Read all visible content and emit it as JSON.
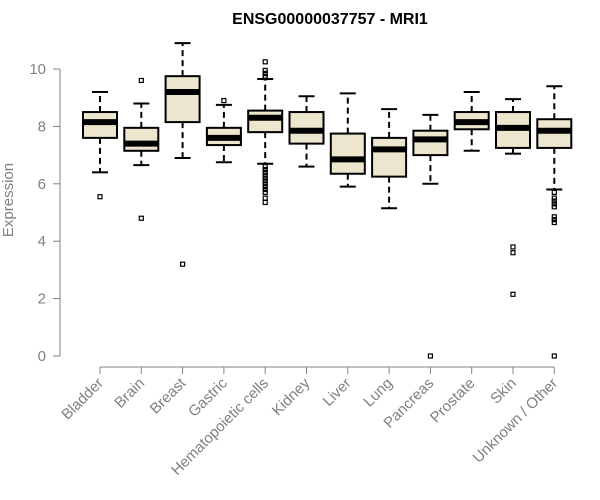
{
  "chart_data": {
    "type": "boxplot",
    "title": "ENSG00000037757 - MRI1",
    "xlabel": "",
    "ylabel": "Expression",
    "ylim": [
      0,
      10
    ],
    "yticks": [
      "0",
      "2",
      "4",
      "6",
      "8",
      "10"
    ],
    "grid": false,
    "colors": {
      "box_fill": "#ede6cf",
      "stroke": "#000000",
      "axis": "#808080",
      "tick_label": "#808080"
    },
    "categories": [
      "Bladder",
      "Brain",
      "Breast",
      "Gastric",
      "Hematopoietic cells",
      "Kidney",
      "Liver",
      "Lung",
      "Pancreas",
      "Prostate",
      "Skin",
      "Unknown / Other"
    ],
    "boxes": [
      {
        "category": "Bladder",
        "whisker_low": 6.4,
        "q1": 7.6,
        "median": 8.15,
        "q3": 8.5,
        "whisker_high": 9.2,
        "outliers": [
          5.55
        ]
      },
      {
        "category": "Brain",
        "whisker_low": 6.65,
        "q1": 7.15,
        "median": 7.4,
        "q3": 7.95,
        "whisker_high": 8.8,
        "outliers": [
          9.6,
          4.8
        ]
      },
      {
        "category": "Breast",
        "whisker_low": 6.9,
        "q1": 8.15,
        "median": 9.2,
        "q3": 9.75,
        "whisker_high": 10.9,
        "outliers": [
          3.2
        ]
      },
      {
        "category": "Gastric",
        "whisker_low": 6.75,
        "q1": 7.35,
        "median": 7.6,
        "q3": 7.95,
        "whisker_high": 8.75,
        "outliers": [
          8.9
        ]
      },
      {
        "category": "Hematopoietic cells",
        "whisker_low": 6.7,
        "q1": 7.8,
        "median": 8.3,
        "q3": 8.55,
        "whisker_high": 9.65,
        "outliers": [
          10.25,
          9.95,
          9.85,
          9.75,
          9.7,
          6.6,
          6.5,
          6.4,
          6.3,
          6.2,
          6.1,
          6.0,
          5.9,
          5.8,
          5.7,
          5.5,
          5.35
        ]
      },
      {
        "category": "Kidney",
        "whisker_low": 6.6,
        "q1": 7.4,
        "median": 7.85,
        "q3": 8.5,
        "whisker_high": 9.05,
        "outliers": []
      },
      {
        "category": "Liver",
        "whisker_low": 5.9,
        "q1": 6.35,
        "median": 6.85,
        "q3": 7.75,
        "whisker_high": 9.15,
        "outliers": []
      },
      {
        "category": "Lung",
        "whisker_low": 5.15,
        "q1": 6.25,
        "median": 7.2,
        "q3": 7.6,
        "whisker_high": 8.6,
        "outliers": []
      },
      {
        "category": "Pancreas",
        "whisker_low": 6.0,
        "q1": 7.0,
        "median": 7.55,
        "q3": 7.85,
        "whisker_high": 8.4,
        "outliers": [
          0.0
        ]
      },
      {
        "category": "Prostate",
        "whisker_low": 7.15,
        "q1": 7.9,
        "median": 8.15,
        "q3": 8.5,
        "whisker_high": 9.2,
        "outliers": []
      },
      {
        "category": "Skin",
        "whisker_low": 7.05,
        "q1": 7.25,
        "median": 7.95,
        "q3": 8.5,
        "whisker_high": 8.95,
        "outliers": [
          3.8,
          3.6,
          2.15
        ]
      },
      {
        "category": "Unknown / Other",
        "whisker_low": 5.8,
        "q1": 7.25,
        "median": 7.85,
        "q3": 8.25,
        "whisker_high": 9.4,
        "outliers": [
          5.7,
          5.5,
          5.4,
          5.3,
          5.2,
          4.85,
          4.75,
          4.65,
          0.0
        ]
      }
    ]
  }
}
